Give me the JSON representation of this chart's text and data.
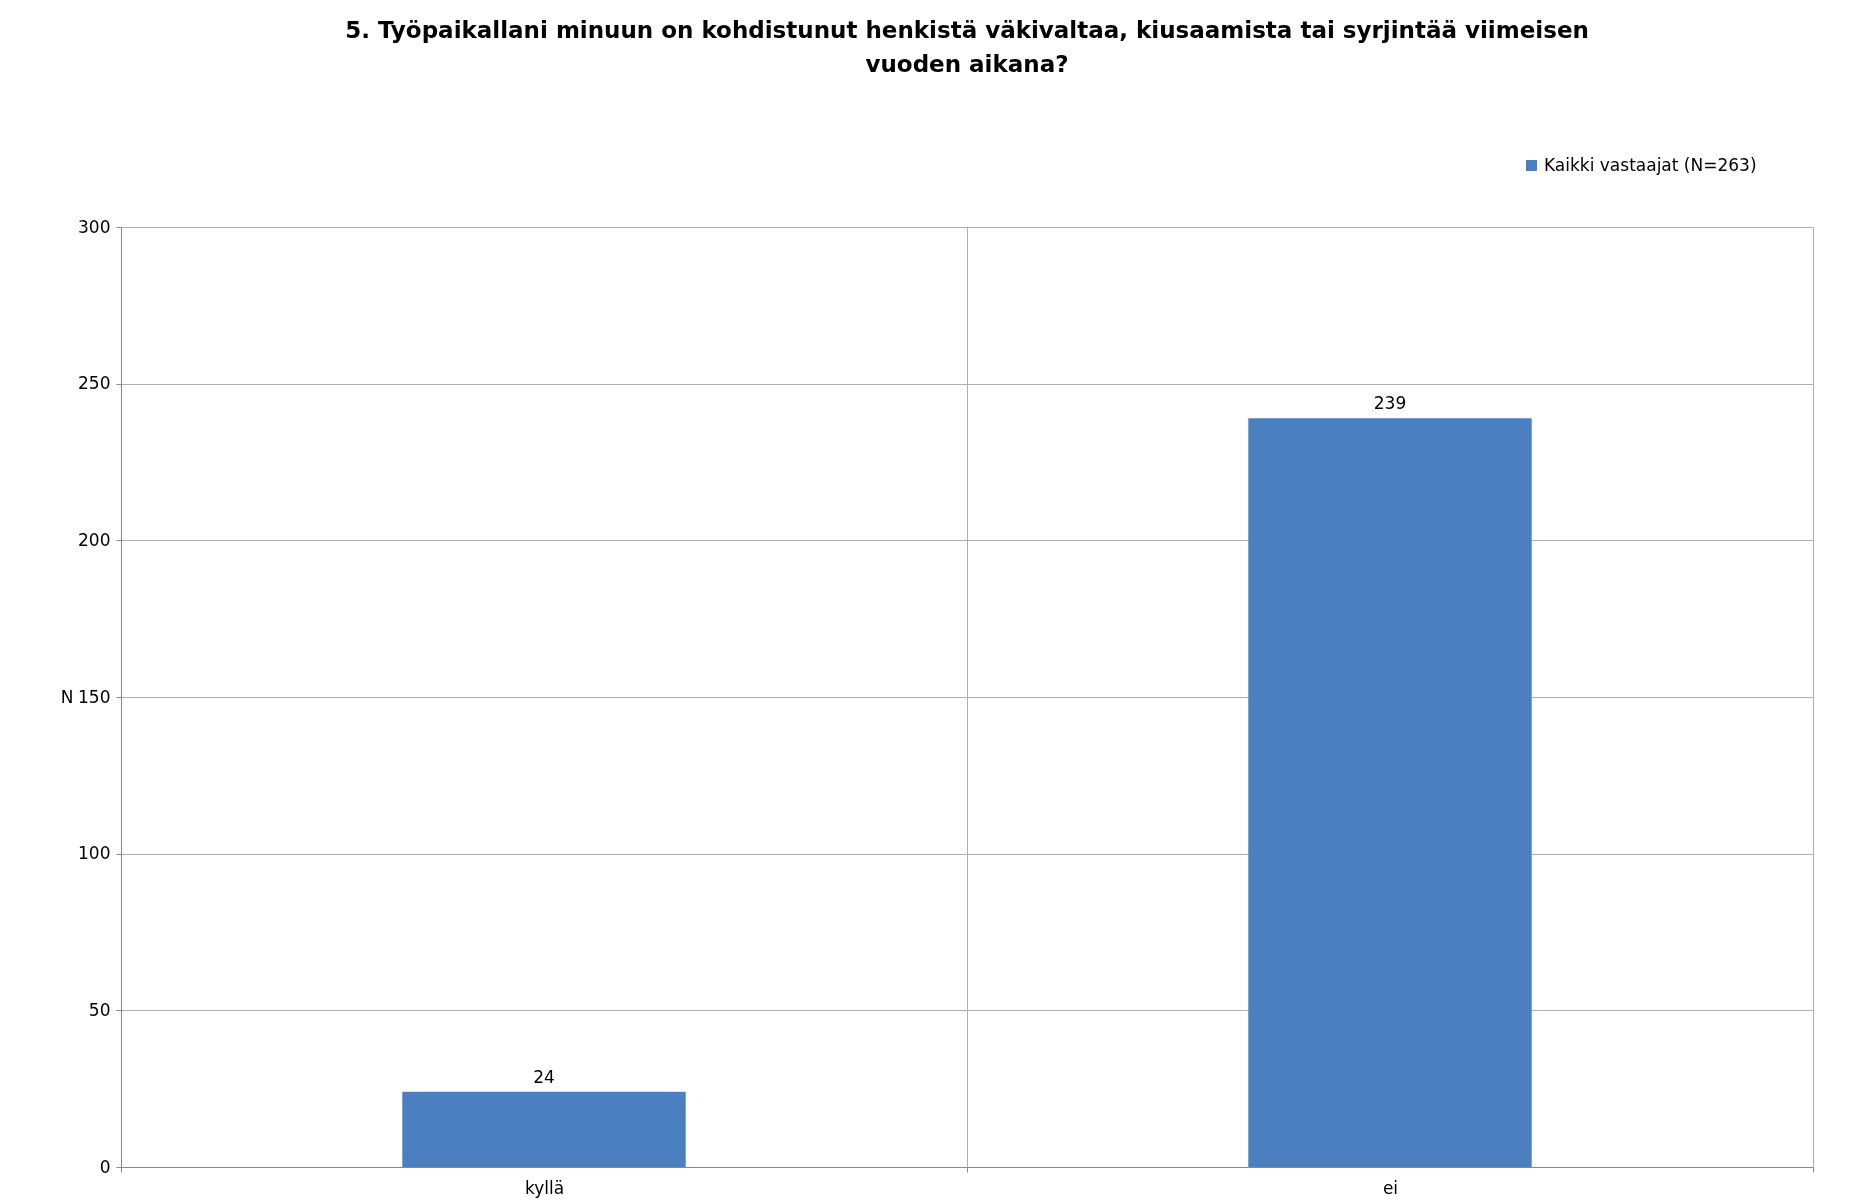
{
  "chart_data": {
    "type": "bar",
    "title": "5. Työpaikallani minuun on kohdistunut henkistä väkivaltaa, kiusaamista tai syrjintää viimeisen vuoden aikana?",
    "categories": [
      "kyllä",
      "ei"
    ],
    "series": [
      {
        "name": "Kaikki vastaajat (N=263)",
        "color": "#4a7fc0",
        "values": [
          24,
          239
        ]
      }
    ],
    "ylabel": "N",
    "ylim": [
      0,
      300
    ],
    "yticks": [
      0,
      50,
      100,
      150,
      200,
      250,
      300
    ],
    "grid": true,
    "legend": "top right",
    "data_labels": true
  }
}
